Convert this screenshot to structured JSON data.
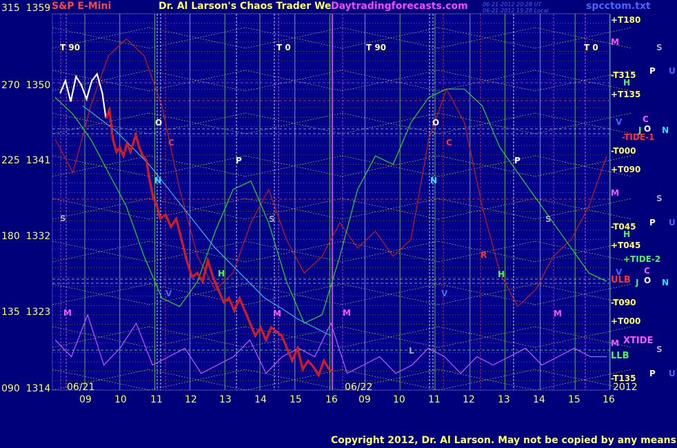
{
  "header": {
    "symbol": "S&P E-Mini",
    "title": "Dr. Al Larson's Chaos Trader We",
    "site": "Daytradingforecasts.com",
    "stamp_line1": "06-21-2012 20:28 UT",
    "stamp_line2": "06-21-2012 15:28 Local",
    "file": "spcctom.txt"
  },
  "footer": {
    "copyright": "Copyright 2012, Dr. Al Larson. May not be copied by any means."
  },
  "colors": {
    "background": "#00007a",
    "yellow_text": "#ffff55",
    "header_red": "#ff4444",
    "site_magenta": "#ff44ff",
    "price_white": "#ffffff",
    "price_red": "#ff2020",
    "cycle_red": "#cc1a1a",
    "cycle_green": "#22dd22",
    "cycle_cyan": "#33bbee",
    "xtide_magenta": "#cc55ff",
    "grid_yellow": "#dddd33",
    "vline_green": "#99ff66",
    "vline_magenta": "#cc44ff"
  },
  "chart_data": {
    "type": "line",
    "ylim": [
      1314,
      1359
    ],
    "y_ticks": [
      {
        "angle": "315",
        "price": "1359"
      },
      {
        "angle": "270",
        "price": "1350"
      },
      {
        "angle": "225",
        "price": "1341"
      },
      {
        "angle": "180",
        "price": "1332"
      },
      {
        "angle": "135",
        "price": "1323"
      },
      {
        "angle": "090",
        "price": "1314"
      }
    ],
    "x_ticks": [
      "09",
      "10",
      "11",
      "12",
      "13",
      "14",
      "15",
      "16",
      "09",
      "10",
      "11",
      "12",
      "13",
      "14",
      "15",
      "16"
    ],
    "date_labels": [
      "06/21",
      "06/22"
    ],
    "year_label": "2012",
    "session_markers": [
      "T 90",
      "T 0",
      "T 90",
      "T 0"
    ],
    "right_levels": [
      "+T180",
      "-T315",
      "+T135",
      "-T000",
      "+T090",
      "-T045",
      "+T045",
      "ULB",
      "-T090",
      "+T000",
      "LLB",
      "-T135"
    ],
    "right_legend": [
      "M",
      "S",
      "P",
      "U",
      "H",
      "V",
      "C",
      "-TIDE-1",
      "J",
      "O",
      "N",
      "+TIDE-2",
      "XTIDE"
    ],
    "event_markers": [
      "O",
      "C",
      "N",
      "P",
      "S",
      "H",
      "V",
      "M",
      "R",
      "L"
    ],
    "price_series": {
      "name": "",
      "x_hour": [
        8.3,
        8.45,
        8.6,
        8.75,
        8.9,
        9.05,
        9.2,
        9.35,
        9.5,
        9.6,
        9.7,
        9.8,
        9.9,
        10.0,
        10.1,
        10.2,
        10.3,
        10.45,
        10.55,
        10.65,
        10.75,
        10.85,
        10.95,
        11.05,
        11.15,
        11.3,
        11.45,
        11.6,
        11.75,
        11.9,
        12.05,
        12.2,
        12.35,
        12.5,
        12.65,
        12.8,
        12.95,
        13.1,
        13.25,
        13.4,
        13.55,
        13.7,
        13.85,
        14.0,
        14.15,
        14.3,
        14.45,
        14.6,
        14.75,
        14.9,
        15.05,
        15.2,
        15.35,
        15.5,
        15.65,
        15.8,
        15.95,
        16.05
      ],
      "price": [
        1349.5,
        1351.0,
        1348.5,
        1351.5,
        1350.5,
        1348.8,
        1351.0,
        1351.8,
        1349.5,
        1346.5,
        1347.5,
        1344.0,
        1342.5,
        1343.0,
        1342.0,
        1343.5,
        1342.5,
        1344.5,
        1343.0,
        1342.0,
        1341.5,
        1339.0,
        1337.0,
        1336.0,
        1334.5,
        1335.0,
        1333.5,
        1334.5,
        1332.0,
        1329.5,
        1327.5,
        1328.0,
        1327.0,
        1329.5,
        1327.5,
        1326.0,
        1324.5,
        1325.0,
        1323.5,
        1325.0,
        1323.5,
        1322.0,
        1320.5,
        1321.5,
        1320.0,
        1321.5,
        1321.0,
        1320.5,
        1319.0,
        1317.5,
        1319.0,
        1316.5,
        1317.5,
        1316.8,
        1315.8,
        1317.5,
        1316.5,
        1316.2
      ]
    },
    "cycle_red": [
      1344,
      1340,
      1348,
      1354,
      1356,
      1354,
      1348,
      1338,
      1330,
      1326,
      1328,
      1334,
      1338,
      1332,
      1328,
      1330,
      1334,
      1331,
      1333,
      1330,
      1332,
      1344,
      1350,
      1346,
      1336,
      1328,
      1324,
      1326,
      1330,
      1332,
      1336,
      1342
    ],
    "cycle_green": [
      1349,
      1347,
      1344,
      1340,
      1336,
      1330,
      1325,
      1324,
      1327,
      1333,
      1338,
      1339,
      1334,
      1327,
      1322,
      1323,
      1330,
      1338,
      1342,
      1341,
      1346,
      1349,
      1350,
      1350,
      1348,
      1343,
      1340,
      1337,
      1334,
      1331,
      1328,
      1327
    ],
    "cycle_cyan": [
      1348,
      1346.5,
      1345,
      1343,
      1341,
      1338.5,
      1336,
      1333.5,
      1331,
      1329,
      1327,
      1325,
      1323.8,
      1322.5,
      1321.5,
      1320.5
    ],
    "xtide": [
      1320,
      1318,
      1323,
      1317,
      1319,
      1322,
      1317,
      1318,
      1319,
      1316,
      1317,
      1318,
      1320,
      1316,
      1318,
      1319,
      1318,
      1322,
      1316,
      1317,
      1318,
      1316,
      1317,
      1319,
      1318,
      1316,
      1318,
      1317,
      1318,
      1319,
      1317,
      1318,
      1319,
      1318,
      1318
    ]
  }
}
